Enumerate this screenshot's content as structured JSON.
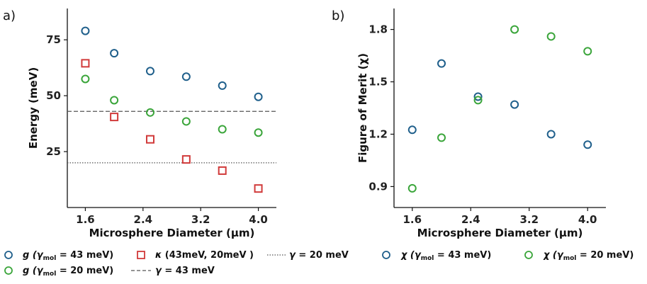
{
  "colors": {
    "blue": "#1f5f8b",
    "green": "#3aa53a",
    "red": "#d13a3a",
    "line": "#555555"
  },
  "chart_data": [
    {
      "panel_label": "a)",
      "type": "scatter",
      "xlabel": "Microsphere Diameter (μm)",
      "ylabel": "Energy (meV)",
      "xlim": [
        1.35,
        4.25
      ],
      "ylim": [
        0,
        89
      ],
      "xticks": [
        1.6,
        2.4,
        3.2,
        4.0
      ],
      "xtick_labels": [
        "1.6",
        "2.4",
        "3.2",
        "4.0"
      ],
      "yticks": [
        25,
        50,
        75
      ],
      "ytick_labels": [
        "25",
        "50",
        "75"
      ],
      "series": [
        {
          "name": "g (γmol = 43 meV)",
          "marker": "circle",
          "color": "blue",
          "x": [
            1.6,
            2.0,
            2.5,
            3.0,
            3.5,
            4.0
          ],
          "y": [
            79,
            69,
            61,
            58.5,
            54.5,
            49.5
          ]
        },
        {
          "name": "g (γmol = 20 meV)",
          "marker": "circle",
          "color": "green",
          "x": [
            1.6,
            2.0,
            2.5,
            3.0,
            3.5,
            4.0
          ],
          "y": [
            57.5,
            48,
            42.5,
            38.5,
            35,
            33.5
          ]
        },
        {
          "name": "κ (43meV, 20meV )",
          "marker": "square",
          "color": "red",
          "x": [
            1.6,
            2.0,
            2.5,
            3.0,
            3.5,
            4.0
          ],
          "y": [
            64.5,
            40.5,
            30.5,
            21.5,
            16.5,
            8.5
          ]
        }
      ],
      "hlines": [
        {
          "name": "γ = 43 meV",
          "y": 43,
          "style": "dashed"
        },
        {
          "name": "γ = 20 meV",
          "y": 20,
          "style": "dotted"
        }
      ]
    },
    {
      "panel_label": "b)",
      "type": "scatter",
      "xlabel": "Microsphere Diameter (μm)",
      "ylabel": "Figure of Merit (χ)",
      "xlim": [
        1.35,
        4.25
      ],
      "ylim": [
        0.78,
        1.92
      ],
      "xticks": [
        1.6,
        2.4,
        3.2,
        4.0
      ],
      "xtick_labels": [
        "1.6",
        "2.4",
        "3.2",
        "4.0"
      ],
      "yticks": [
        0.9,
        1.2,
        1.5,
        1.8
      ],
      "ytick_labels": [
        "0.9",
        "1.2",
        "1.5",
        "1.8"
      ],
      "series": [
        {
          "name": "χ (γmol = 43 meV)",
          "marker": "circle",
          "color": "blue",
          "x": [
            1.6,
            2.0,
            2.5,
            3.0,
            3.5,
            4.0
          ],
          "y": [
            1.225,
            1.605,
            1.415,
            1.37,
            1.2,
            1.14
          ]
        },
        {
          "name": "χ (γmol = 20 meV)",
          "marker": "circle",
          "color": "green",
          "x": [
            1.6,
            2.0,
            2.5,
            3.0,
            3.5,
            4.0
          ],
          "y": [
            0.89,
            1.18,
            1.395,
            1.8,
            1.76,
            1.675
          ]
        }
      ]
    }
  ],
  "legend_left": [
    {
      "symbol": "g",
      "sub": "mol",
      "rest": " = 43 meV)",
      "marker": "circle",
      "color": "blue"
    },
    {
      "symbol": "κ",
      "text": " (43meV, 20meV )",
      "marker": "square",
      "color": "red"
    },
    {
      "symbol": "γ",
      "text": " = 20 meV",
      "marker": "dotted"
    },
    {
      "symbol": "g",
      "sub": "mol",
      "rest": " = 20 meV)",
      "marker": "circle",
      "color": "green"
    },
    {
      "symbol": "γ",
      "text": " = 43 meV",
      "marker": "dashed"
    }
  ],
  "legend_right": [
    {
      "symbol": "χ",
      "sub": "mol",
      "rest": " = 43 meV)",
      "marker": "circle",
      "color": "blue"
    },
    {
      "symbol": "χ",
      "sub": "mol",
      "rest": " = 20 meV)",
      "marker": "circle",
      "color": "green"
    }
  ]
}
